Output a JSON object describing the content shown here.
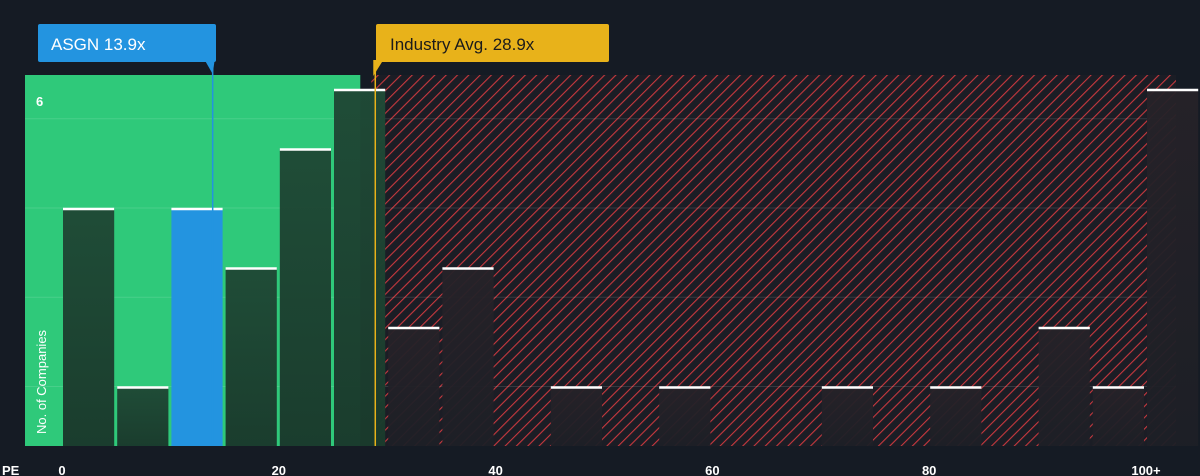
{
  "chart_data": {
    "type": "bar",
    "axis_prefix": "PE",
    "ylabel": "No. of Companies",
    "ytick_label": "6",
    "ymax": 6,
    "xlim": [
      0,
      102
    ],
    "xticks": [
      {
        "value": 0,
        "label": "0"
      },
      {
        "value": 20,
        "label": "20"
      },
      {
        "value": 40,
        "label": "40"
      },
      {
        "value": 60,
        "label": "60"
      },
      {
        "value": 80,
        "label": "80"
      },
      {
        "value": 100,
        "label": "100+"
      }
    ],
    "bin_width": 5,
    "bins": [
      {
        "x0": 0,
        "count": 4
      },
      {
        "x0": 5,
        "count": 1
      },
      {
        "x0": 10,
        "count": 4,
        "highlight": true
      },
      {
        "x0": 15,
        "count": 3
      },
      {
        "x0": 20,
        "count": 5
      },
      {
        "x0": 25,
        "count": 6
      },
      {
        "x0": 30,
        "count": 2
      },
      {
        "x0": 35,
        "count": 3
      },
      {
        "x0": 45,
        "count": 1
      },
      {
        "x0": 55,
        "count": 1
      },
      {
        "x0": 70,
        "count": 1
      },
      {
        "x0": 80,
        "count": 1
      },
      {
        "x0": 90,
        "count": 2
      },
      {
        "x0": 95,
        "count": 1
      },
      {
        "x0": 100,
        "count": 6
      }
    ],
    "company": {
      "label": "ASGN 13.9x",
      "value": 13.9,
      "color": "#2394e0"
    },
    "industry": {
      "label": "Industry Avg. 28.9x",
      "value": 28.9,
      "color": "#e8b21a"
    },
    "colors": {
      "background": "#151b24",
      "undervalued_zone": "#2fc97a",
      "overvalued_stripe": "#c8383e",
      "bar": "#1f4a36",
      "bar_over": "#231e26",
      "bar_top": "#ffffff",
      "grid": "#3a3f4a"
    }
  }
}
